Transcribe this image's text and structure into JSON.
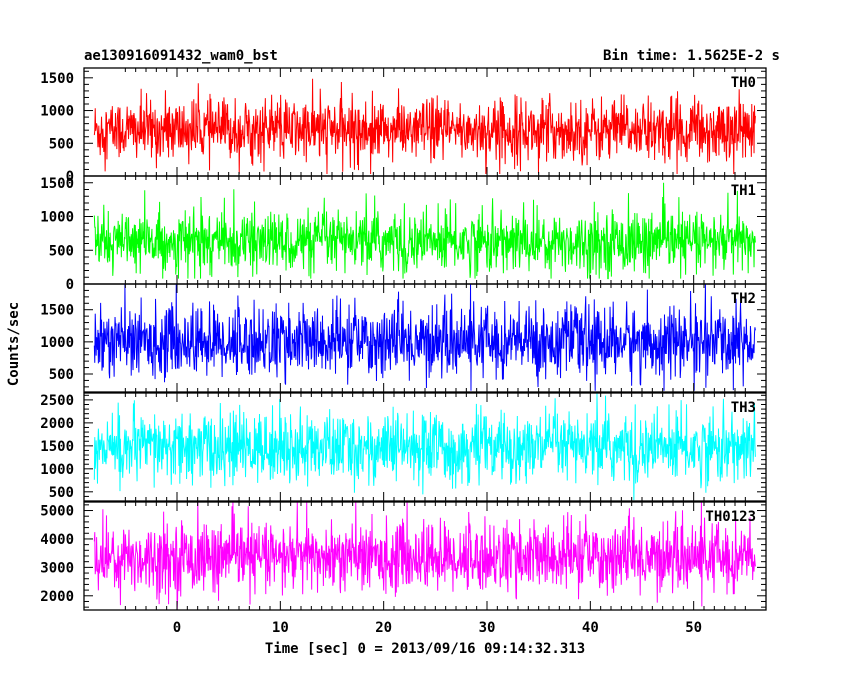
{
  "chart_data": {
    "type": "line",
    "title": "ae130916091432_wam0_bst",
    "subtitle": "Bin time: 1.5625E-2 s",
    "xlabel": "Time [sec] 0 = 2013/09/16 09:14:32.313",
    "ylabel": "Counts/sec",
    "xlim": [
      -9,
      57
    ],
    "x_ticks": [
      0,
      10,
      20,
      30,
      40,
      50
    ],
    "data_x_range": [
      -8,
      56
    ],
    "grid": false,
    "panels": [
      {
        "name": "TH0",
        "color": "#ff0000",
        "ylim": [
          0,
          1650
        ],
        "y_ticks": [
          0,
          500,
          1000,
          1500
        ],
        "level": 700,
        "spread": 240,
        "min": 30,
        "max": 1640
      },
      {
        "name": "TH1",
        "color": "#00ff00",
        "ylim": [
          0,
          1600
        ],
        "y_ticks": [
          0,
          500,
          1000,
          1500
        ],
        "level": 620,
        "spread": 230,
        "min": 80,
        "max": 1600
      },
      {
        "name": "TH2",
        "color": "#0000ff",
        "ylim": [
          220,
          1900
        ],
        "y_ticks": [
          500,
          1000,
          1500
        ],
        "level": 1000,
        "spread": 280,
        "min": 240,
        "max": 1900
      },
      {
        "name": "TH3",
        "color": "#00ffff",
        "ylim": [
          300,
          2650
        ],
        "y_ticks": [
          500,
          1000,
          1500,
          2000,
          2500
        ],
        "level": 1450,
        "spread": 380,
        "min": 320,
        "max": 2640
      },
      {
        "name": "TH0123",
        "color": "#ff00ff",
        "ylim": [
          1500,
          5300
        ],
        "y_ticks": [
          2000,
          3000,
          4000,
          5000
        ],
        "level": 3350,
        "spread": 620,
        "min": 1500,
        "max": 5300
      }
    ]
  }
}
